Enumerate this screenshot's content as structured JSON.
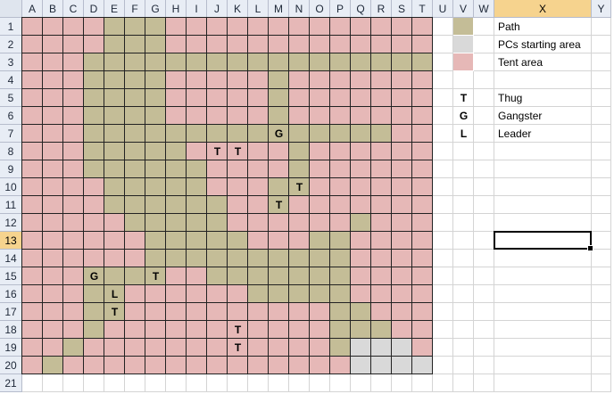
{
  "columns": [
    "A",
    "B",
    "C",
    "D",
    "E",
    "F",
    "G",
    "H",
    "I",
    "J",
    "K",
    "L",
    "M",
    "N",
    "O",
    "P",
    "Q",
    "R",
    "S",
    "T",
    "U",
    "V",
    "W",
    "X",
    "Y"
  ],
  "rows": [
    "1",
    "2",
    "3",
    "4",
    "5",
    "6",
    "7",
    "8",
    "9",
    "10",
    "11",
    "12",
    "13",
    "14",
    "15",
    "16",
    "17",
    "18",
    "19",
    "20",
    "21"
  ],
  "selected": {
    "column": "X",
    "row": "13"
  },
  "colors": {
    "path": "#c4bd97",
    "start": "#d9d9d9",
    "tent": "#e6b8b7",
    "empty": "#ffffff"
  },
  "map_rows": [
    "TTTTPPPTTTTTTTTTTTTT",
    "TTTTPPPTTTTTTTTTTTTT",
    "TTTPPPPPPPPPPPPPPPPP",
    "TTTPPPPTTTTTPTTTTTTT",
    "TTTPPPPTTTTTPTTTTTTT",
    "TTTPPPPTTTTTPTTTTTTT",
    "TTTPPPPPPPPPPPPPPPTT",
    "TTTPPPPPTTTTTPTTTTTT",
    "TTTPPPPPPTTTTPTTTTTT",
    "TTTTPPPPPTTTPPTTTTTT",
    "TTTTPPPPPPTTPTTTTTTT",
    "TTTTTPPPPPTTTTTTPTTT",
    "TTTTTTPPPPPTTTPPTTTT",
    "TTTTTTPPPPPPPPPPTTTT",
    "TTTPPPPTTPPPPPPPTTTT",
    "TTTPPTTTTTTPPPPPTTTT",
    "TTTPPTTTTTTTTTTPPTTT",
    "TTTPTTTTTTTTTTTPPPTT",
    "TTPTTTTTTTTTTTTPSSST",
    "TPTTTTTTTTTTTTTTSSSS"
  ],
  "markers": [
    {
      "row": 7,
      "col": 13,
      "label": "G"
    },
    {
      "row": 8,
      "col": 10,
      "label": "T"
    },
    {
      "row": 8,
      "col": 11,
      "label": "T"
    },
    {
      "row": 10,
      "col": 14,
      "label": "T"
    },
    {
      "row": 11,
      "col": 13,
      "label": "T"
    },
    {
      "row": 15,
      "col": 4,
      "label": "G"
    },
    {
      "row": 15,
      "col": 7,
      "label": "T"
    },
    {
      "row": 16,
      "col": 5,
      "label": "L"
    },
    {
      "row": 17,
      "col": 5,
      "label": "T"
    },
    {
      "row": 18,
      "col": 11,
      "label": "T"
    },
    {
      "row": 19,
      "col": 11,
      "label": "T"
    }
  ],
  "legend": {
    "swatches": [
      {
        "row": 1,
        "type": "path",
        "label": "Path"
      },
      {
        "row": 2,
        "type": "start",
        "label": "PCs starting area"
      },
      {
        "row": 3,
        "type": "tent",
        "label": "Tent area"
      }
    ],
    "symbols": [
      {
        "row": 5,
        "symbol": "T",
        "label": "Thug"
      },
      {
        "row": 6,
        "symbol": "G",
        "label": "Gangster"
      },
      {
        "row": 7,
        "symbol": "L",
        "label": "Leader"
      }
    ]
  }
}
